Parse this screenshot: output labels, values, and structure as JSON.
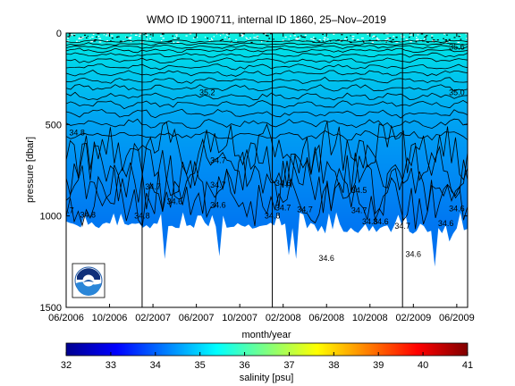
{
  "chart_data": {
    "type": "heatmap",
    "title": "WMO ID 1900711, internal ID 1860, 25–Nov–2019",
    "xlabel": "month/year",
    "ylabel": "pressure [dbar]",
    "x_ticks": [
      "06/2006",
      "10/2006",
      "02/2007",
      "06/2007",
      "10/2007",
      "02/2008",
      "06/2008",
      "10/2008",
      "02/2009",
      "06/2009"
    ],
    "y_ticks": [
      "0",
      "500",
      "1000",
      "1500"
    ],
    "ylim": [
      1500,
      0
    ],
    "x_range": [
      "2006-06",
      "2009-07"
    ],
    "year_boundaries": [
      "2007-01",
      "2008-01",
      "2009-01"
    ],
    "colorbar": {
      "label": "salinity [psu]",
      "ticks": [
        "32",
        "33",
        "34",
        "35",
        "36",
        "37",
        "38",
        "39",
        "40",
        "41"
      ],
      "range": [
        32,
        41
      ],
      "colormap": "jet"
    },
    "contour_labels": [
      {
        "text": "35.6",
        "x": "2009-06",
        "y": 90
      },
      {
        "text": "35.2",
        "x": "2007-07",
        "y": 340
      },
      {
        "text": "35.0",
        "x": "2009-06",
        "y": 340
      },
      {
        "text": "34.8",
        "x": "2006-07",
        "y": 560
      },
      {
        "text": "34.7",
        "x": "2007-08",
        "y": 710
      },
      {
        "text": "34.7",
        "x": "2007-02",
        "y": 855
      },
      {
        "text": "34.7",
        "x": "2007-08",
        "y": 845
      },
      {
        "text": "34.6",
        "x": "2008-02",
        "y": 835
      },
      {
        "text": "34.5",
        "x": "2008-09",
        "y": 875
      },
      {
        "text": "34.6",
        "x": "2007-04",
        "y": 935
      },
      {
        "text": "34.6",
        "x": "2007-08",
        "y": 955
      },
      {
        "text": "34.7",
        "x": "2006-06",
        "y": 985
      },
      {
        "text": "34.8",
        "x": "2006-08",
        "y": 1010
      },
      {
        "text": "34.8",
        "x": "2007-01",
        "y": 1015
      },
      {
        "text": "34.8",
        "x": "2008-01",
        "y": 1015
      },
      {
        "text": "34.7",
        "x": "2008-02",
        "y": 970
      },
      {
        "text": "34.7",
        "x": "2008-04",
        "y": 980
      },
      {
        "text": "34.7",
        "x": "2008-09",
        "y": 985
      },
      {
        "text": "34.8",
        "x": "2008-10",
        "y": 1045
      },
      {
        "text": "34.6",
        "x": "2008-11",
        "y": 1045
      },
      {
        "text": "34.7",
        "x": "2009-01",
        "y": 1070
      },
      {
        "text": "34.6",
        "x": "2009-05",
        "y": 1055
      },
      {
        "text": "34.6",
        "x": "2009-06",
        "y": 975
      },
      {
        "text": "34.6",
        "x": "2008-06",
        "y": 1245
      },
      {
        "text": "34.6",
        "x": "2009-02",
        "y": 1225
      }
    ],
    "logo": "noaa-logo"
  }
}
